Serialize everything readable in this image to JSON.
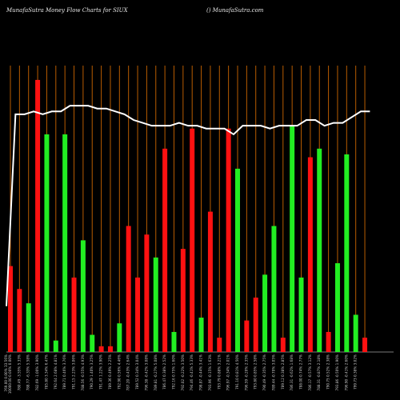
{
  "header": {
    "title": "MunafaSutra  Money Flow  Charts for SIUX",
    "credit": "() MunafaSutra.com"
  },
  "colors": {
    "background": "#000000",
    "positive_bar": "#22ee22",
    "negative_bar": "#ff1111",
    "gridline": "#b85c00",
    "price_line": "#ffffff",
    "label_text": "#c8c8c8"
  },
  "chart_data": {
    "type": "bar",
    "title": "MunafaSutra  Money Flow  Charts for SIUX",
    "grid": true,
    "value_scale": [
      0,
      100
    ],
    "bars": [
      {
        "value": 30,
        "dir": "neg"
      },
      {
        "value": 22,
        "dir": "neg"
      },
      {
        "value": 17,
        "dir": "pos"
      },
      {
        "value": 95,
        "dir": "neg"
      },
      {
        "value": 76,
        "dir": "pos"
      },
      {
        "value": 4,
        "dir": "pos"
      },
      {
        "value": 76,
        "dir": "pos"
      },
      {
        "value": 26,
        "dir": "neg"
      },
      {
        "value": 39,
        "dir": "pos"
      },
      {
        "value": 6,
        "dir": "pos"
      },
      {
        "value": 2,
        "dir": "neg"
      },
      {
        "value": 2,
        "dir": "neg"
      },
      {
        "value": 10,
        "dir": "pos"
      },
      {
        "value": 44,
        "dir": "neg"
      },
      {
        "value": 26,
        "dir": "neg"
      },
      {
        "value": 41,
        "dir": "neg"
      },
      {
        "value": 33,
        "dir": "pos"
      },
      {
        "value": 71,
        "dir": "neg"
      },
      {
        "value": 7,
        "dir": "pos"
      },
      {
        "value": 36,
        "dir": "neg"
      },
      {
        "value": 78,
        "dir": "neg"
      },
      {
        "value": 12,
        "dir": "pos"
      },
      {
        "value": 49,
        "dir": "neg"
      },
      {
        "value": 5,
        "dir": "neg"
      },
      {
        "value": 78,
        "dir": "neg"
      },
      {
        "value": 64,
        "dir": "pos"
      },
      {
        "value": 11,
        "dir": "neg"
      },
      {
        "value": 19,
        "dir": "neg"
      },
      {
        "value": 27,
        "dir": "pos"
      },
      {
        "value": 44,
        "dir": "pos"
      },
      {
        "value": 5,
        "dir": "neg"
      },
      {
        "value": 79,
        "dir": "pos"
      },
      {
        "value": 26,
        "dir": "pos"
      },
      {
        "value": 68,
        "dir": "neg"
      },
      {
        "value": 71,
        "dir": "pos"
      },
      {
        "value": 7,
        "dir": "neg"
      },
      {
        "value": 31,
        "dir": "pos"
      },
      {
        "value": 69,
        "dir": "pos"
      },
      {
        "value": 13,
        "dir": "pos"
      },
      {
        "value": 5,
        "dir": "neg"
      }
    ],
    "price_line": [
      16,
      83,
      83,
      84,
      83,
      84,
      84,
      86,
      86,
      86,
      85,
      85,
      84,
      83,
      81,
      80,
      79,
      79,
      79,
      80,
      79,
      79,
      78,
      78,
      78,
      76,
      79,
      79,
      79,
      78,
      79,
      79,
      79,
      81,
      81,
      79,
      80,
      80,
      82,
      84,
      84
    ],
    "x_tick_labels": [
      "769.00 0.00% 33.56%",
      "10000.00 0.00% 0.00%",
      "780.49 -3.55% 5.33%",
      "788.77 -6.33% 5.58%",
      "782.69 -1.00% 3.90%",
      "785.80 3.34% 6.47%",
      "792.64 2.68% 4.81%",
      "789.71 0.46% 3.76%",
      "791.15 2.23% 3.06%",
      "788.56 -0.55% 4.93%",
      "790.29 1.40% 3.25%",
      "791.47 1.22% 3.90%",
      "789.36 0.49% 2.25%",
      "792.90 0.56% 4.46%",
      "787.20 -0.43% 2.64%",
      "789.52 0.34% 3.04%",
      "796.38 -0.42% 3.08%",
      "789.81 -0.27% 5.08%",
      "786.47 0.38% 2.52%",
      "792.16 0.75% 1.60%",
      "792.02 -0.22% 3.50%",
      "794.46 -0.41% 5.33%",
      "798.87 -0.44% 3.41%",
      "793.96 -0.15% 1.63%",
      "793.79 0.88% 3.21%",
      "796.97 -0.34% 2.01%",
      "791.10 0.81% 4.50%",
      "796.59 -0.20% 2.35%",
      "793.80 0.85% 2.58%",
      "790.49 -0.35% 2.75%",
      "789.44 -0.70% 3.05%",
      "789.12 0.38% 2.85%",
      "786.31 -0.62% 1.68%",
      "788.00 0.74% 2.77%",
      "786.17 -0.57% 3.12%",
      "788.31 -0.87% 2.18%",
      "790.75 0.52% 2.38%",
      "793.86 -0.50% 1.90%",
      "796.90 -0.41% 2.60%",
      "799.73 0.38% 3.02%"
    ]
  }
}
